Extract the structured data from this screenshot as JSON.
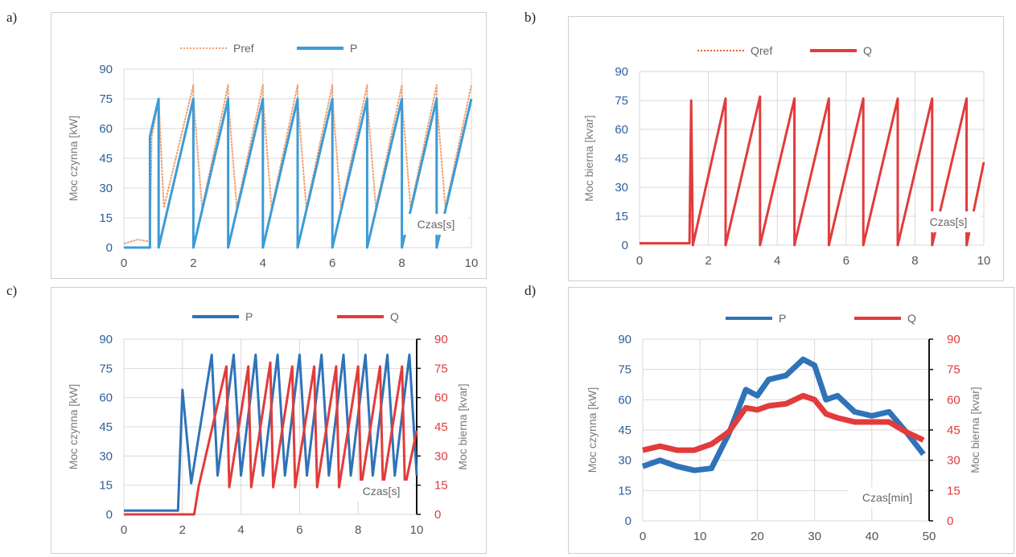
{
  "charts": [
    {
      "panel_label": "a)",
      "type": "line",
      "legend": [
        "Pref",
        "P"
      ],
      "left_axis_label": "Moc czynna [kW]",
      "right_axis_label": "",
      "yticks": [
        "0",
        "15",
        "30",
        "45",
        "60",
        "75",
        "90"
      ],
      "right_yticks": [],
      "xticks": [
        "0",
        "2",
        "4",
        "6",
        "8",
        "10"
      ],
      "inner_label": "Czas[s]",
      "xlim": [
        0,
        10
      ],
      "ylim": [
        0,
        90
      ]
    },
    {
      "panel_label": "b)",
      "type": "line",
      "legend": [
        "Qref",
        "Q"
      ],
      "left_axis_label": "Moc bierna [kvar]",
      "right_axis_label": "",
      "yticks": [
        "0",
        "15",
        "30",
        "45",
        "60",
        "75",
        "90"
      ],
      "right_yticks": [],
      "xticks": [
        "0",
        "2",
        "4",
        "6",
        "8",
        "10"
      ],
      "inner_label": "Czas[s]",
      "xlim": [
        0,
        10
      ],
      "ylim": [
        0,
        90
      ]
    },
    {
      "panel_label": "c)",
      "type": "line",
      "legend": [
        "P",
        "Q"
      ],
      "left_axis_label": "Moc czynna [kW]",
      "right_axis_label": "Moc bierna [kvar]",
      "yticks": [
        "0",
        "15",
        "30",
        "45",
        "60",
        "75",
        "90"
      ],
      "right_yticks": [
        "0",
        "15",
        "30",
        "45",
        "60",
        "75",
        "90"
      ],
      "xticks": [
        "0",
        "2",
        "4",
        "6",
        "8",
        "10"
      ],
      "inner_label": "Czas[s]",
      "xlim": [
        0,
        10
      ],
      "ylim": [
        0,
        90
      ]
    },
    {
      "panel_label": "d)",
      "type": "line",
      "legend": [
        "P",
        "Q"
      ],
      "left_axis_label": "Moc czynna [kW]",
      "right_axis_label": "Moc bierna [kvar]",
      "yticks": [
        "0",
        "15",
        "30",
        "45",
        "60",
        "75",
        "90"
      ],
      "right_yticks": [
        "0",
        "15",
        "30",
        "45",
        "60",
        "75",
        "90"
      ],
      "xticks": [
        "0",
        "10",
        "20",
        "30",
        "40",
        "50"
      ],
      "inner_label": "Czas[min]",
      "xlim": [
        0,
        50
      ],
      "ylim": [
        0,
        90
      ]
    }
  ],
  "colors": {
    "pref": "#f0a070",
    "p": "#3d9bd6",
    "p_dark": "#2f73b8",
    "qref": "#e0662a",
    "q": "#e23b3b",
    "tick_blue": "#2e5f9a",
    "tick_red": "#e23b3b",
    "axis_title": "#7a7a7a",
    "grid": "#d9d9d9"
  },
  "chart_data": [
    {
      "type": "line",
      "xlim": [
        0,
        10
      ],
      "ylim": [
        0,
        90
      ],
      "series": [
        {
          "name": "Pref",
          "x": [
            0,
            0.4,
            0.75,
            0.8,
            1.0,
            1.15,
            2.0,
            2.0,
            2.25,
            3.0,
            3.0,
            3.25,
            4.0,
            4.0,
            4.25,
            5.0,
            5.0,
            5.25,
            6.0,
            6.0,
            6.25,
            7.0,
            7.0,
            7.25,
            8.0,
            8.0,
            8.25,
            9.0,
            9.0,
            9.25,
            10.0
          ],
          "y": [
            2,
            4,
            3,
            56,
            75,
            20,
            82,
            75,
            20,
            82,
            75,
            20,
            82,
            75,
            20,
            82,
            75,
            20,
            82,
            75,
            20,
            82,
            75,
            20,
            82,
            75,
            20,
            82,
            75,
            20,
            82
          ]
        },
        {
          "name": "P",
          "x": [
            0,
            0.75,
            0.75,
            0.8,
            1.0,
            1.0,
            2.0,
            2.0,
            3.0,
            3.0,
            4.0,
            4.0,
            5.0,
            5.0,
            6.0,
            6.0,
            7.0,
            7.0,
            8.0,
            8.0,
            9.0,
            9.0,
            10.0
          ],
          "y": [
            0,
            0,
            56,
            60,
            75,
            0,
            75,
            0,
            75,
            0,
            75,
            0,
            75,
            0,
            75,
            0,
            75,
            0,
            75,
            0,
            75,
            0,
            75
          ]
        }
      ]
    },
    {
      "type": "line",
      "xlim": [
        0,
        10
      ],
      "ylim": [
        0,
        90
      ],
      "series": [
        {
          "name": "Qref",
          "x": [
            0,
            1.45,
            1.5,
            1.55,
            2.5,
            2.5,
            3.5,
            3.5,
            4.5,
            4.5,
            5.5,
            5.5,
            6.5,
            6.5,
            7.5,
            7.5,
            8.5,
            8.5,
            9.5,
            9.5,
            10.0
          ],
          "y": [
            1,
            1,
            75,
            0,
            76,
            0,
            77,
            0,
            76,
            0,
            76,
            0,
            76,
            0,
            76,
            0,
            76,
            0,
            76,
            0,
            43
          ]
        },
        {
          "name": "Q",
          "x": [
            0,
            1.45,
            1.5,
            1.55,
            2.5,
            2.5,
            3.5,
            3.5,
            4.5,
            4.5,
            5.5,
            5.5,
            6.5,
            6.5,
            7.5,
            7.5,
            8.5,
            8.5,
            9.5,
            9.5,
            10.0
          ],
          "y": [
            1,
            1,
            75,
            0,
            76,
            0,
            77,
            0,
            76,
            0,
            76,
            0,
            76,
            0,
            76,
            0,
            76,
            0,
            76,
            0,
            43
          ]
        }
      ]
    },
    {
      "type": "line",
      "xlim": [
        0,
        10
      ],
      "ylim": [
        0,
        90
      ],
      "series": [
        {
          "name": "P",
          "axis": "left",
          "x": [
            0,
            1.85,
            2.0,
            2.3,
            3.0,
            3.2,
            3.75,
            4.0,
            4.5,
            4.75,
            5.25,
            5.5,
            6.0,
            6.25,
            6.75,
            7.0,
            7.5,
            7.75,
            8.25,
            8.5,
            9.0,
            9.25,
            9.75,
            10.0
          ],
          "y": [
            2,
            2,
            64,
            16,
            82,
            20,
            82,
            20,
            82,
            20,
            82,
            20,
            82,
            20,
            82,
            20,
            82,
            20,
            82,
            20,
            82,
            20,
            82,
            20
          ]
        },
        {
          "name": "Q",
          "axis": "right",
          "x": [
            0,
            2.4,
            2.55,
            3.5,
            3.6,
            4.25,
            4.35,
            5.0,
            5.1,
            5.75,
            5.85,
            6.5,
            6.6,
            7.25,
            7.35,
            8.0,
            8.1,
            8.75,
            8.85,
            9.5,
            9.6,
            10.0
          ],
          "y": [
            0,
            0,
            14,
            76,
            14,
            76,
            14,
            78,
            14,
            76,
            14,
            76,
            14,
            76,
            14,
            76,
            14,
            76,
            14,
            76,
            14,
            43
          ]
        }
      ]
    },
    {
      "type": "line",
      "xlim": [
        0,
        50
      ],
      "ylim": [
        0,
        90
      ],
      "series": [
        {
          "name": "P",
          "axis": "left",
          "x": [
            0,
            3,
            6,
            9,
            12,
            15,
            18,
            20,
            22,
            25,
            28,
            30,
            32,
            34,
            37,
            40,
            43,
            46,
            49
          ],
          "y": [
            27,
            30,
            27,
            25,
            26,
            43,
            65,
            62,
            70,
            72,
            80,
            77,
            60,
            62,
            54,
            52,
            54,
            44,
            33
          ]
        },
        {
          "name": "Q",
          "axis": "right",
          "x": [
            0,
            3,
            6,
            9,
            12,
            15,
            18,
            20,
            22,
            25,
            28,
            30,
            32,
            34,
            37,
            40,
            43,
            46,
            49
          ],
          "y": [
            35,
            37,
            35,
            35,
            38,
            44,
            56,
            55,
            57,
            58,
            62,
            60,
            53,
            51,
            49,
            49,
            49,
            44,
            40
          ]
        }
      ]
    }
  ]
}
